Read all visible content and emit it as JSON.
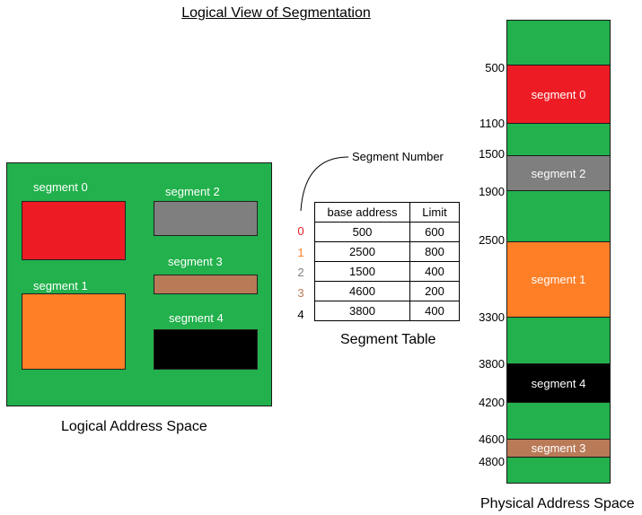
{
  "title": "Logical View of Segmentation",
  "colors": {
    "background_green": "#22b14c",
    "segment_0": "#ed1c24",
    "segment_1": "#ff7f27",
    "segment_2": "#7f7f7f",
    "segment_3": "#b97a57",
    "segment_4": "#000000"
  },
  "logical": {
    "caption": "Logical Address Space",
    "segments": [
      {
        "label": "segment 0"
      },
      {
        "label": "segment 1"
      },
      {
        "label": "segment 2"
      },
      {
        "label": "segment 3"
      },
      {
        "label": "segment 4"
      }
    ]
  },
  "table": {
    "pointer_label": "Segment Number",
    "caption": "Segment Table",
    "headers": [
      "base address",
      "Limit"
    ],
    "rows": [
      {
        "num": "0",
        "base": "500",
        "limit": "600"
      },
      {
        "num": "1",
        "base": "2500",
        "limit": "800"
      },
      {
        "num": "2",
        "base": "1500",
        "limit": "400"
      },
      {
        "num": "3",
        "base": "4600",
        "limit": "200"
      },
      {
        "num": "4",
        "base": "3800",
        "limit": "400"
      }
    ]
  },
  "physical": {
    "caption": "Physical Address Space",
    "blocks": [
      {
        "label": "segment 0"
      },
      {
        "label": "segment 2"
      },
      {
        "label": "segment 1"
      },
      {
        "label": "segment 4"
      },
      {
        "label": "segment 3"
      }
    ],
    "addresses": [
      "500",
      "1100",
      "1500",
      "1900",
      "2500",
      "3300",
      "3800",
      "4200",
      "4600",
      "4800"
    ]
  }
}
